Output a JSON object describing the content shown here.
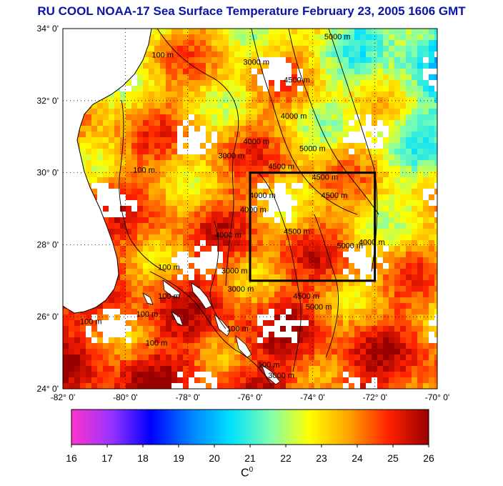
{
  "title": "RU COOL  NOAA-17 Sea Surface Temperature February 23, 2005 1606 GMT",
  "map": {
    "lat_labels": [
      "34° 0'",
      "32° 0'",
      "30° 0'",
      "28° 0'",
      "26° 0'",
      "24° 0'"
    ],
    "lon_labels": [
      "-82° 0'",
      "-80° 0'",
      "-78° 0'",
      "-76° 0'",
      "-74° 0'",
      "-72° 0'",
      "-70° 0'"
    ],
    "lat_range": [
      24,
      34
    ],
    "lon_range": [
      -82,
      -70
    ],
    "grid": "dotted",
    "study_box": {
      "lon": [
        -76,
        -72
      ],
      "lat": [
        27,
        30
      ]
    },
    "contour_labels": [
      {
        "text": "100 m",
        "lon": -78.8,
        "lat": 33.2
      },
      {
        "text": "3000 m",
        "lon": -75.8,
        "lat": 33.0
      },
      {
        "text": "5000 m",
        "lon": -73.2,
        "lat": 33.7
      },
      {
        "text": "4500 m",
        "lon": -74.5,
        "lat": 32.5
      },
      {
        "text": "4000 m",
        "lon": -74.6,
        "lat": 31.5
      },
      {
        "text": "5000 m",
        "lon": -74.0,
        "lat": 30.6
      },
      {
        "text": "3000 m",
        "lon": -76.6,
        "lat": 30.4
      },
      {
        "text": "4000 m",
        "lon": -75.8,
        "lat": 30.8
      },
      {
        "text": "4500 m",
        "lon": -75.0,
        "lat": 30.1
      },
      {
        "text": "4500 m",
        "lon": -73.6,
        "lat": 29.8
      },
      {
        "text": "100 m",
        "lon": -79.4,
        "lat": 30.0
      },
      {
        "text": "4000 m",
        "lon": -75.6,
        "lat": 29.3
      },
      {
        "text": "4000 m",
        "lon": -75.9,
        "lat": 28.9
      },
      {
        "text": "4500 m",
        "lon": -74.5,
        "lat": 28.3
      },
      {
        "text": "4500 m",
        "lon": -73.3,
        "lat": 29.3
      },
      {
        "text": "5000 m",
        "lon": -72.8,
        "lat": 27.9
      },
      {
        "text": "4000 m",
        "lon": -72.1,
        "lat": 28.0
      },
      {
        "text": "100 m",
        "lon": -78.6,
        "lat": 27.3
      },
      {
        "text": "100 m",
        "lon": -78.6,
        "lat": 26.5
      },
      {
        "text": "100 m",
        "lon": -79.3,
        "lat": 26.0
      },
      {
        "text": "100 m",
        "lon": -81.1,
        "lat": 25.8
      },
      {
        "text": "100 m",
        "lon": -79.0,
        "lat": 25.2
      },
      {
        "text": "3000 m",
        "lon": -76.5,
        "lat": 27.2
      },
      {
        "text": "4000 m",
        "lon": -76.7,
        "lat": 28.2
      },
      {
        "text": "3000 m",
        "lon": -76.3,
        "lat": 26.7
      },
      {
        "text": "4500 m",
        "lon": -74.2,
        "lat": 26.5
      },
      {
        "text": "5000 m",
        "lon": -73.8,
        "lat": 26.2
      },
      {
        "text": "100 m",
        "lon": -76.4,
        "lat": 25.6
      },
      {
        "text": "100 m",
        "lon": -75.4,
        "lat": 24.6
      },
      {
        "text": "3000 m",
        "lon": -75.0,
        "lat": 24.3
      }
    ]
  },
  "colorbar": {
    "min": 16,
    "max": 26,
    "tick_labels": [
      "16",
      "17",
      "18",
      "19",
      "20",
      "21",
      "22",
      "23",
      "24",
      "25",
      "26"
    ],
    "unit": "C",
    "unit_sup": "0",
    "stops": [
      "#ff33cc",
      "#9933ff",
      "#0000ff",
      "#0080ff",
      "#00e0ff",
      "#80ffb0",
      "#ffff00",
      "#ffa000",
      "#ff2000",
      "#990000"
    ]
  },
  "colors": {
    "land": "#ffffff",
    "coast": "#000000",
    "box": "#000000",
    "title": "#0a14a8"
  }
}
